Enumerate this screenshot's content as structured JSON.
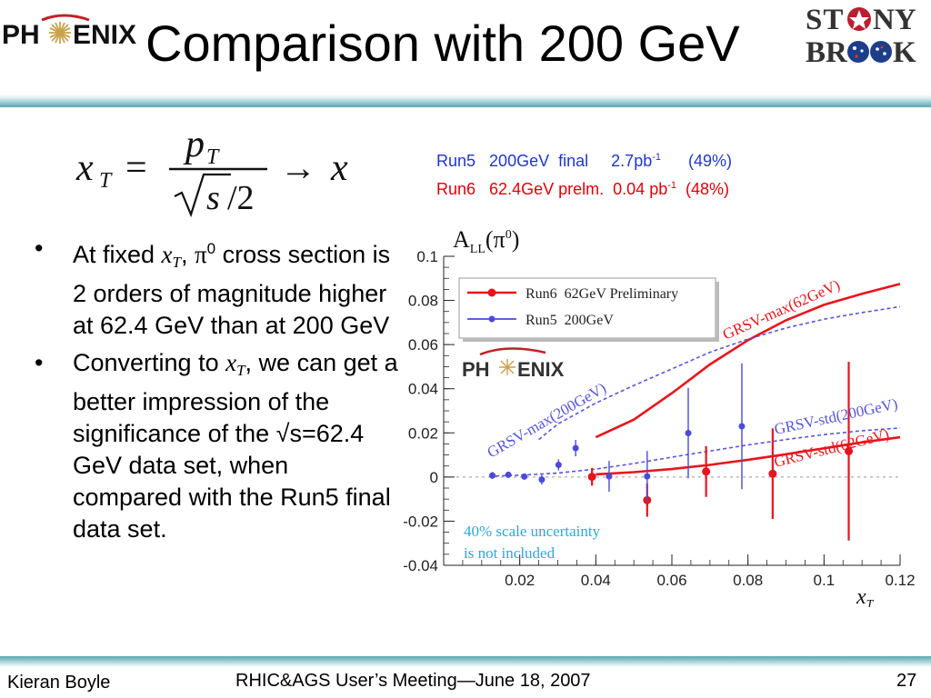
{
  "header": {
    "title": "Comparison with 200 GeV",
    "logo_left": "PHENIX",
    "logo_right_line1": "STONY",
    "logo_right_line2": "BROOK"
  },
  "formula": {
    "lhs": "x",
    "lhs_sub": "T",
    "numerator": "p",
    "numerator_sub": "T",
    "denominator_root": "s",
    "denominator_tail": "/2",
    "eq": "=",
    "arrow": "→",
    "rhs": "x"
  },
  "run_legend": [
    {
      "run": "Run5",
      "energy": "200GeV",
      "status": "final",
      "lumi": "2.7pb",
      "exp": "-1",
      "pol": "(49%)",
      "color": "#1f36d1"
    },
    {
      "run": "Run6",
      "energy": "62.4GeV",
      "status": "prelm.",
      "lumi": "0.04 pb",
      "exp": "-1",
      "pol": "(48%)",
      "color": "#e0000a"
    }
  ],
  "bullets": {
    "b1_pre": "At fixed ",
    "b1_var": "x",
    "b1_sub": "T",
    "b1_sep": ", ",
    "b1_pi": "π",
    "b1_pi_sup": "0",
    "b1_post": " cross section is 2 orders of magnitude higher at 62.4 GeV than at 200 GeV",
    "b2_pre": "Converting to ",
    "b2_var": "x",
    "b2_sub": "T",
    "b2_post": ", we can get a better impression of the significance of the √s=62.4 GeV data set, when compared with the Run5 final data set."
  },
  "chart_data": {
    "type": "scatter",
    "title": "A",
    "title_sub": "LL",
    "title_tail": "(π",
    "title_sup": "0",
    "title_close": ")",
    "xlabel": "x",
    "xlabel_sub": "T",
    "xlim": [
      0.0,
      0.12
    ],
    "ylim": [
      -0.04,
      0.1
    ],
    "xticks": [
      "0.02",
      "0.04",
      "0.06",
      "0.08",
      "0.1",
      "0.12"
    ],
    "yticks": [
      "0.1",
      "0.08",
      "0.06",
      "0.04",
      "0.02",
      "0",
      "-0.02",
      "-0.04"
    ],
    "series": [
      {
        "name": "Run6  62GeV Preliminary",
        "color": "#e8141c",
        "points": [
          {
            "x": 0.039,
            "y": 0.0001,
            "err": 0.004
          },
          {
            "x": 0.0535,
            "y": -0.0105,
            "err": 0.0075
          },
          {
            "x": 0.069,
            "y": 0.0025,
            "err": 0.0115
          },
          {
            "x": 0.0865,
            "y": 0.0015,
            "err": 0.0205
          },
          {
            "x": 0.1065,
            "y": 0.0117,
            "err": 0.0405
          }
        ]
      },
      {
        "name": "Run5  200GeV",
        "color": "#4a4ad8",
        "points": [
          {
            "x": 0.0128,
            "y": 0.0007,
            "err": 0.0016
          },
          {
            "x": 0.017,
            "y": 0.001,
            "err": 0.0008
          },
          {
            "x": 0.0212,
            "y": 0.0002,
            "err": 0.0012
          },
          {
            "x": 0.0258,
            "y": -0.0012,
            "err": 0.0022
          },
          {
            "x": 0.0302,
            "y": 0.0055,
            "err": 0.0025
          },
          {
            "x": 0.0347,
            "y": 0.0131,
            "err": 0.0037
          },
          {
            "x": 0.0435,
            "y": 0.0003,
            "err": 0.007
          },
          {
            "x": 0.0535,
            "y": 0.0003,
            "err": 0.0115
          },
          {
            "x": 0.0643,
            "y": 0.0199,
            "err": 0.0205
          },
          {
            "x": 0.0784,
            "y": 0.023,
            "err": 0.0285
          }
        ]
      }
    ],
    "curves": [
      {
        "label": "GRSV-max(62GeV)",
        "color": "#e8141c",
        "dashed": false,
        "points": [
          [
            0.04,
            0.018
          ],
          [
            0.05,
            0.026
          ],
          [
            0.06,
            0.038
          ],
          [
            0.07,
            0.051
          ],
          [
            0.08,
            0.062
          ],
          [
            0.09,
            0.071
          ],
          [
            0.1,
            0.078
          ],
          [
            0.11,
            0.083
          ],
          [
            0.12,
            0.0875
          ]
        ]
      },
      {
        "label": "GRSV-max(200GeV)",
        "color": "#5656dc",
        "dashed": true,
        "points": [
          [
            0.025,
            0.017
          ],
          [
            0.03,
            0.024
          ],
          [
            0.04,
            0.0335
          ],
          [
            0.05,
            0.0415
          ],
          [
            0.06,
            0.049
          ],
          [
            0.07,
            0.0565
          ],
          [
            0.08,
            0.0625
          ],
          [
            0.09,
            0.0675
          ],
          [
            0.1,
            0.0715
          ],
          [
            0.11,
            0.0745
          ],
          [
            0.12,
            0.0772
          ]
        ]
      },
      {
        "label": "GRSV-std(62GeV)",
        "color": "#e8141c",
        "dashed": false,
        "points": [
          [
            0.04,
            0.0012
          ],
          [
            0.05,
            0.0022
          ],
          [
            0.06,
            0.0036
          ],
          [
            0.07,
            0.0055
          ],
          [
            0.08,
            0.0078
          ],
          [
            0.09,
            0.0103
          ],
          [
            0.1,
            0.013
          ],
          [
            0.11,
            0.0157
          ],
          [
            0.12,
            0.018
          ]
        ]
      },
      {
        "label": "GRSV-std(200GeV)",
        "color": "#5656dc",
        "dashed": true,
        "points": [
          [
            0.012,
            0.0004
          ],
          [
            0.02,
            0.0008
          ],
          [
            0.03,
            0.0018
          ],
          [
            0.04,
            0.0036
          ],
          [
            0.05,
            0.0061
          ],
          [
            0.06,
            0.009
          ],
          [
            0.07,
            0.0118
          ],
          [
            0.08,
            0.0145
          ],
          [
            0.09,
            0.017
          ],
          [
            0.1,
            0.0192
          ],
          [
            0.11,
            0.021
          ],
          [
            0.12,
            0.0222
          ]
        ]
      }
    ],
    "note_line1": "40% scale uncertainty",
    "note_line2": "is not included",
    "note_color": "#2da8d8",
    "inset_logo": "PHENIX",
    "legend_position": "top-left",
    "grid": false
  },
  "footer": {
    "author": "Kieran Boyle",
    "meeting": "RHIC&AGS User’s Meeting—June 18, 2007",
    "page": "27"
  }
}
